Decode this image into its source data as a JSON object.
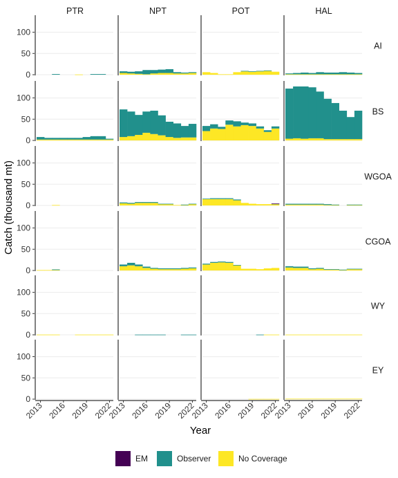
{
  "chart_data": {
    "type": "bar",
    "stacked": true,
    "xlabel": "Year",
    "ylabel": "Catch (thousand mt)",
    "ylim": [
      0,
      140
    ],
    "yticks": [
      0,
      50,
      100
    ],
    "xticks": [
      2013,
      2016,
      2019,
      2022
    ],
    "years": [
      2013,
      2014,
      2015,
      2016,
      2017,
      2018,
      2019,
      2020,
      2021,
      2022
    ],
    "columns": [
      "PTR",
      "NPT",
      "POT",
      "HAL"
    ],
    "rows": [
      "AI",
      "BS",
      "WGOA",
      "CGOA",
      "WY",
      "EY"
    ],
    "legend": {
      "position": "bottom",
      "items": [
        {
          "label": "EM",
          "color": "#440154"
        },
        {
          "label": "Observer",
          "color": "#21908C"
        },
        {
          "label": "No Coverage",
          "color": "#FDE725"
        }
      ]
    },
    "grid": true,
    "panels": {
      "AI": {
        "PTR": {
          "em": [
            0,
            0,
            0,
            0,
            0,
            0,
            0,
            0,
            0,
            0
          ],
          "observer": [
            0,
            0,
            1.5,
            0,
            0,
            0,
            0,
            1.5,
            1.5,
            0
          ],
          "nocov": [
            0,
            0,
            0,
            0,
            0,
            0.5,
            0,
            0,
            0,
            0
          ]
        },
        "NPT": {
          "em": [
            0,
            0,
            0,
            0,
            0,
            0,
            0,
            0,
            0,
            0
          ],
          "observer": [
            4,
            4,
            6,
            10,
            8,
            8,
            9,
            3,
            2,
            2
          ],
          "nocov": [
            4,
            3,
            2,
            1,
            3,
            4,
            4,
            3,
            3,
            4
          ]
        },
        "POT": {
          "em": [
            0,
            0,
            0,
            0,
            0,
            0,
            0,
            0,
            0,
            0
          ],
          "observer": [
            0,
            0,
            0,
            0,
            0,
            1,
            1,
            1,
            1,
            0
          ],
          "nocov": [
            6,
            4,
            1,
            1,
            6,
            8,
            7,
            8,
            9,
            7
          ]
        },
        "HAL": {
          "em": [
            0,
            0,
            0,
            0,
            0,
            0,
            0,
            0,
            0,
            0
          ],
          "observer": [
            2,
            3,
            4,
            3,
            5,
            4,
            4,
            5,
            4,
            3
          ],
          "nocov": [
            1,
            1,
            1,
            1,
            1,
            1,
            1,
            1,
            1,
            1
          ]
        }
      },
      "BS": {
        "PTR": {
          "em": [
            0,
            0,
            0,
            0,
            0,
            0,
            0,
            0,
            0,
            0
          ],
          "observer": [
            6,
            4,
            4,
            4,
            4,
            4,
            6,
            8,
            8,
            2
          ],
          "nocov": [
            2,
            2,
            2,
            2,
            2,
            2,
            2,
            2,
            2,
            2
          ]
        },
        "NPT": {
          "em": [
            0,
            0,
            0,
            0,
            0,
            0,
            0,
            0,
            0,
            0
          ],
          "observer": [
            65,
            58,
            47,
            50,
            55,
            47,
            36,
            34,
            27,
            32
          ],
          "nocov": [
            8,
            10,
            13,
            18,
            15,
            12,
            8,
            6,
            7,
            7
          ]
        },
        "POT": {
          "em": [
            0,
            0,
            0,
            0,
            0,
            0,
            0,
            0,
            0,
            0
          ],
          "observer": [
            12,
            10,
            5,
            10,
            12,
            6,
            6,
            5,
            4,
            5
          ],
          "nocov": [
            22,
            28,
            27,
            37,
            33,
            36,
            34,
            28,
            20,
            28
          ]
        },
        "HAL": {
          "em": [
            0,
            0,
            0,
            0,
            0,
            0,
            0,
            0,
            0,
            0
          ],
          "observer": [
            118,
            122,
            123,
            120,
            110,
            95,
            85,
            67,
            52,
            67
          ],
          "nocov": [
            4,
            5,
            4,
            5,
            5,
            3,
            3,
            3,
            3,
            3
          ]
        }
      },
      "WGOA": {
        "PTR": {
          "em": [
            0,
            0,
            0,
            0,
            0,
            0,
            0,
            0,
            0,
            0
          ],
          "observer": [
            0,
            0,
            0,
            0,
            0,
            0,
            0,
            0,
            0,
            0
          ],
          "nocov": [
            0,
            0,
            1,
            0,
            0,
            0,
            0,
            0,
            0,
            0
          ]
        },
        "NPT": {
          "em": [
            0,
            0,
            0,
            0,
            0,
            0,
            0,
            0,
            0,
            0
          ],
          "observer": [
            2,
            2,
            2,
            2,
            2,
            1,
            1,
            0,
            1,
            1
          ],
          "nocov": [
            5,
            4,
            6,
            6,
            6,
            3,
            3,
            1,
            1,
            3
          ]
        },
        "POT": {
          "em": [
            0,
            0,
            0,
            0,
            0,
            0,
            0,
            0,
            0,
            0.5
          ],
          "observer": [
            1,
            2,
            2,
            2,
            2,
            0,
            0,
            0,
            0,
            1
          ],
          "nocov": [
            15,
            15,
            15,
            15,
            12,
            6,
            4,
            3,
            3,
            3
          ]
        },
        "HAL": {
          "em": [
            0,
            0,
            0,
            0,
            0,
            0,
            0,
            0,
            0,
            0
          ],
          "observer": [
            2,
            2,
            2,
            2,
            2,
            2,
            1,
            0,
            1,
            1
          ],
          "nocov": [
            2,
            2,
            2,
            2,
            2,
            1,
            1,
            0,
            1,
            1
          ]
        }
      },
      "CGOA": {
        "PTR": {
          "em": [
            0,
            0,
            0,
            0,
            0,
            0,
            0,
            0,
            0,
            0
          ],
          "observer": [
            0,
            0,
            1.5,
            0,
            0,
            0,
            0,
            0,
            0,
            0
          ],
          "nocov": [
            1,
            1,
            1,
            0,
            0,
            0,
            0,
            0,
            0,
            0
          ]
        },
        "NPT": {
          "em": [
            0,
            0,
            0,
            0,
            0,
            0,
            0,
            0,
            0,
            0
          ],
          "observer": [
            4,
            6,
            4,
            3,
            2,
            2,
            2,
            2,
            2,
            2
          ],
          "nocov": [
            10,
            12,
            10,
            6,
            4,
            3,
            3,
            3,
            4,
            5
          ]
        },
        "POT": {
          "em": [
            0,
            0,
            0,
            0,
            0,
            0,
            0,
            0,
            0,
            0
          ],
          "observer": [
            2,
            2,
            2,
            2,
            1,
            0,
            0,
            0,
            0,
            0
          ],
          "nocov": [
            14,
            18,
            19,
            18,
            12,
            4,
            4,
            3,
            5,
            6
          ]
        },
        "HAL": {
          "em": [
            0,
            0,
            0,
            0,
            0,
            0,
            0,
            0,
            0,
            0
          ],
          "observer": [
            3,
            3,
            3,
            2,
            2,
            1,
            1,
            1,
            1,
            1
          ],
          "nocov": [
            7,
            6,
            6,
            3,
            4,
            2,
            2,
            1,
            3,
            3
          ]
        }
      },
      "WY": {
        "PTR": {
          "em": [
            0,
            0,
            0,
            0,
            0,
            0,
            0,
            0,
            0,
            0
          ],
          "observer": [
            0,
            0,
            0,
            0,
            0,
            0,
            0,
            0,
            0,
            0
          ],
          "nocov": [
            0.5,
            0.5,
            0.5,
            0,
            0,
            0.5,
            0.5,
            0.5,
            0.5,
            0.5
          ]
        },
        "NPT": {
          "em": [
            0,
            0,
            0,
            0,
            0,
            0,
            0,
            0,
            0,
            0
          ],
          "observer": [
            0,
            0,
            0.5,
            0.5,
            0.5,
            0.5,
            0,
            0,
            0.5,
            0.5
          ],
          "nocov": [
            0,
            0,
            0,
            0,
            0,
            0,
            0,
            0,
            0,
            0
          ]
        },
        "POT": {
          "em": [
            0,
            0,
            0,
            0,
            0,
            0,
            0,
            0,
            0,
            0
          ],
          "observer": [
            0,
            0,
            0,
            0,
            0,
            0,
            0,
            0.5,
            0,
            0
          ],
          "nocov": [
            0,
            0,
            0,
            0,
            0,
            0,
            0,
            0,
            0.5,
            0.5
          ]
        },
        "HAL": {
          "em": [
            0,
            0,
            0,
            0,
            0,
            0,
            0,
            0,
            0,
            0
          ],
          "observer": [
            0,
            0,
            0,
            0,
            0,
            0,
            0,
            0,
            0,
            0
          ],
          "nocov": [
            0.5,
            0.5,
            0.5,
            0.5,
            0.5,
            0.5,
            0.5,
            0.5,
            0.5,
            0.5
          ]
        }
      },
      "EY": {
        "PTR": {
          "em": [
            0,
            0,
            0,
            0,
            0,
            0,
            0,
            0,
            0,
            0
          ],
          "observer": [
            0,
            0,
            0,
            0,
            0,
            0,
            0,
            0,
            0,
            0
          ],
          "nocov": [
            0,
            0,
            0,
            0,
            0,
            0,
            0,
            0,
            0,
            0
          ]
        },
        "NPT": {
          "em": [
            0,
            0,
            0,
            0,
            0,
            0,
            0,
            0,
            0,
            0
          ],
          "observer": [
            0,
            0,
            0,
            0,
            0,
            0,
            0,
            0,
            0,
            0
          ],
          "nocov": [
            0,
            0,
            0,
            0,
            0,
            0,
            0,
            0,
            0,
            0
          ]
        },
        "POT": {
          "em": [
            0,
            0,
            0,
            0,
            0,
            0,
            0,
            0,
            0,
            0
          ],
          "observer": [
            0,
            0,
            0,
            0,
            0,
            0,
            0,
            0,
            0,
            0
          ],
          "nocov": [
            0,
            0,
            0,
            0,
            0,
            0,
            0.5,
            0.5,
            0.5,
            0.5
          ]
        },
        "HAL": {
          "em": [
            0,
            0,
            0,
            0,
            0,
            0,
            0,
            0,
            0,
            0
          ],
          "observer": [
            0,
            0,
            0,
            0,
            0,
            0,
            0,
            0,
            0,
            0
          ],
          "nocov": [
            1,
            1,
            1,
            1,
            1,
            1,
            1,
            1,
            1,
            1
          ]
        }
      }
    }
  }
}
